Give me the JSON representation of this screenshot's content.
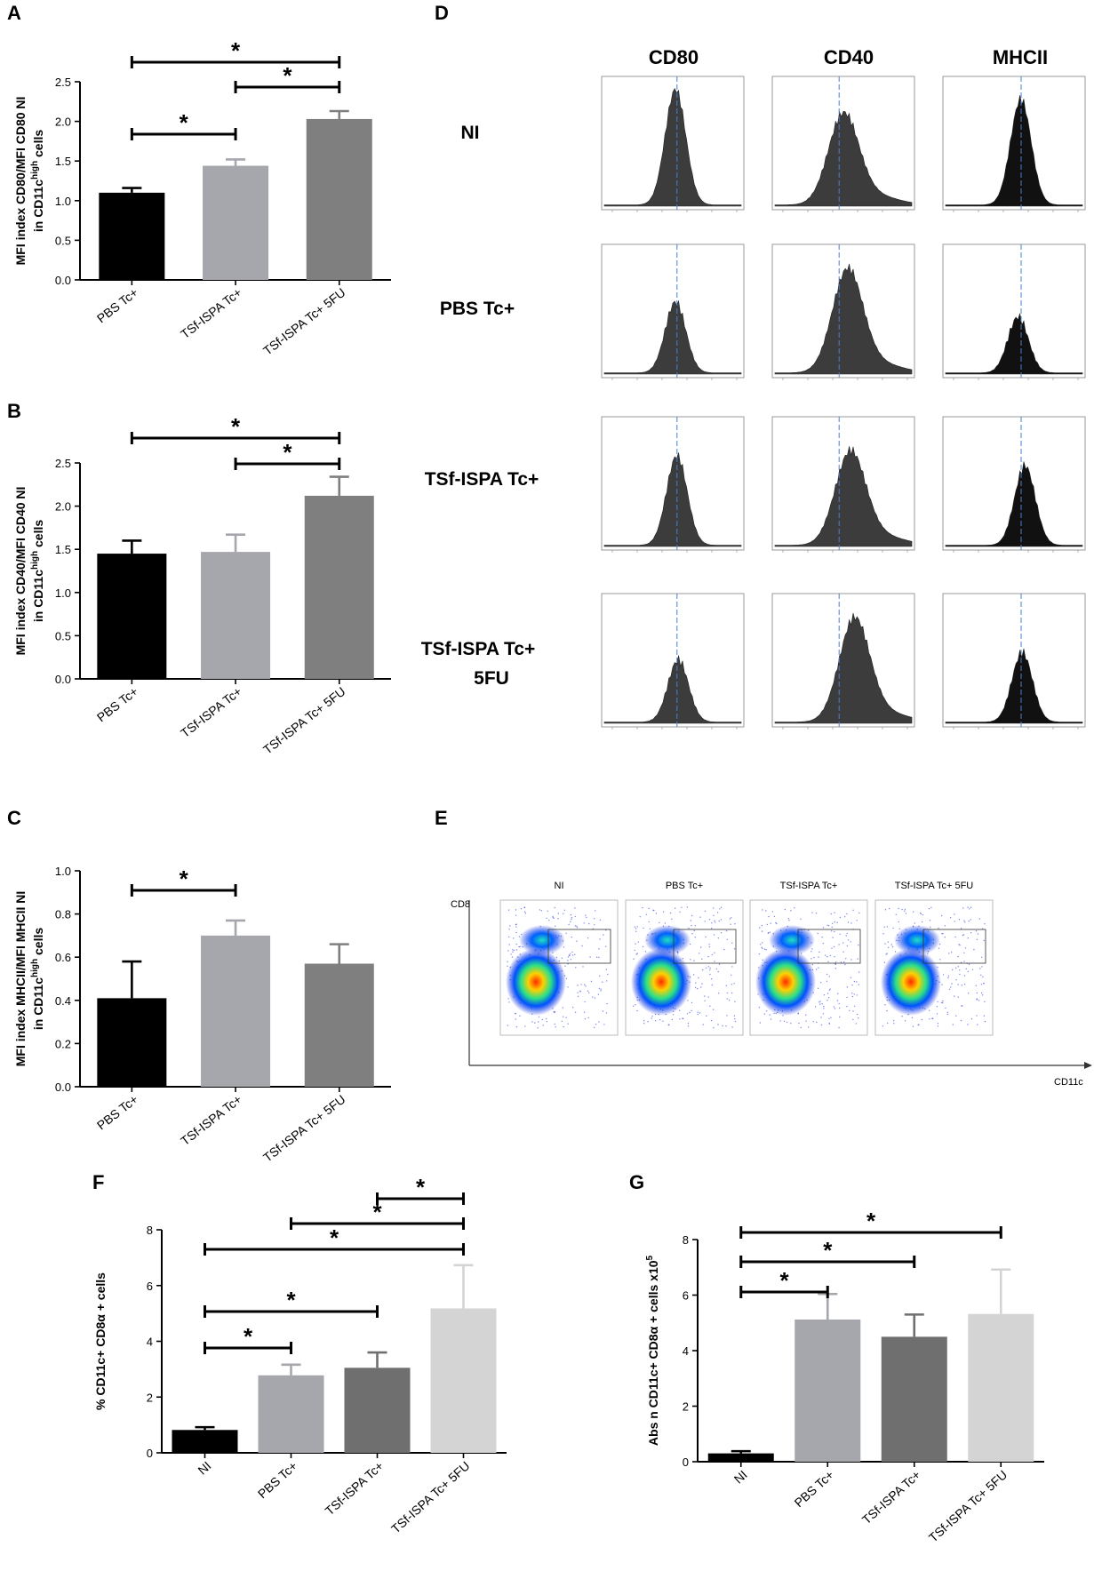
{
  "figure": {
    "panel_letters": [
      "A",
      "B",
      "C",
      "D",
      "E",
      "F",
      "G"
    ]
  },
  "chart_data": [
    {
      "panel": "A",
      "type": "bar",
      "categories": [
        "PBS Tc+",
        "TSf-ISPA Tc+",
        "TSf-ISPA Tc+ 5FU"
      ],
      "values": [
        1.1,
        1.44,
        2.03
      ],
      "errors": [
        0.06,
        0.08,
        0.1
      ],
      "colors": [
        "#000000",
        "#a6a6ad",
        "#7f7f7f"
      ],
      "ylabel_line1": "MFI index CD80/MFI CD80 NI",
      "ylabel_line2": "in CD11c",
      "ylabel_sup": "high",
      "ylabel_tail": " cells",
      "ylim": [
        0,
        2.5
      ],
      "yticks": [
        "0.0",
        "0.5",
        "1.0",
        "1.5",
        "2.0",
        "2.5"
      ],
      "significance": [
        {
          "from": 0,
          "to": 2,
          "label": "*"
        },
        {
          "from": 1,
          "to": 2,
          "label": "*"
        },
        {
          "from": 0,
          "to": 1,
          "label": "*"
        }
      ]
    },
    {
      "panel": "B",
      "type": "bar",
      "categories": [
        "PBS Tc+",
        "TSf-ISPA Tc+",
        "TSf-ISPA Tc+ 5FU"
      ],
      "values": [
        1.45,
        1.47,
        2.12
      ],
      "errors": [
        0.15,
        0.2,
        0.22
      ],
      "colors": [
        "#000000",
        "#a6a6ad",
        "#7f7f7f"
      ],
      "ylabel_line1": "MFI index CD40/MFI CD40 NI",
      "ylabel_line2": "in CD11c",
      "ylabel_sup": "high",
      "ylabel_tail": " cells",
      "ylim": [
        0,
        2.5
      ],
      "yticks": [
        "0.0",
        "0.5",
        "1.0",
        "1.5",
        "2.0",
        "2.5"
      ],
      "significance": [
        {
          "from": 0,
          "to": 2,
          "label": "*"
        },
        {
          "from": 1,
          "to": 2,
          "label": "*"
        }
      ]
    },
    {
      "panel": "C",
      "type": "bar",
      "categories": [
        "PBS Tc+",
        "TSf-ISPA Tc+",
        "TSf-ISPA Tc+ 5FU"
      ],
      "values": [
        0.41,
        0.7,
        0.57
      ],
      "errors": [
        0.17,
        0.07,
        0.09
      ],
      "colors": [
        "#000000",
        "#a6a6ad",
        "#7f7f7f"
      ],
      "ylabel_line1": "MFI index MHCII/MFI MHCII NI",
      "ylabel_line2": "in CD11c",
      "ylabel_sup": "high",
      "ylabel_tail": " cells",
      "ylim": [
        0,
        1.0
      ],
      "yticks": [
        "0.0",
        "0.2",
        "0.4",
        "0.6",
        "0.8",
        "1.0"
      ],
      "significance": [
        {
          "from": 0,
          "to": 1,
          "label": "*"
        }
      ]
    },
    {
      "panel": "F",
      "type": "bar",
      "categories": [
        "NI",
        "PBS Tc+",
        "TSf-ISPA Tc+",
        "TSf-ISPA Tc+ 5FU"
      ],
      "values": [
        0.82,
        2.78,
        3.05,
        5.18
      ],
      "errors": [
        0.1,
        0.38,
        0.55,
        1.55
      ],
      "colors": [
        "#000000",
        "#a6a6ad",
        "#6f6f6f",
        "#d4d4d4"
      ],
      "ylabel": "% CD11c+ CD8α + cells",
      "ylim": [
        0,
        8
      ],
      "yticks": [
        "0",
        "2",
        "4",
        "6",
        "8"
      ],
      "significance": [
        {
          "from": 2,
          "to": 3,
          "label": "*"
        },
        {
          "from": 1,
          "to": 3,
          "label": "*"
        },
        {
          "from": 0,
          "to": 3,
          "label": "*"
        },
        {
          "from": 0,
          "to": 2,
          "label": "*"
        },
        {
          "from": 0,
          "to": 1,
          "label": "*"
        }
      ]
    },
    {
      "panel": "G",
      "type": "bar",
      "categories": [
        "NI",
        "PBS Tc+",
        "TSf-ISPA Tc+",
        "TSf-ISPA Tc+ 5FU"
      ],
      "values": [
        0.3,
        5.12,
        4.5,
        5.32
      ],
      "errors": [
        0.08,
        0.92,
        0.8,
        1.6
      ],
      "colors": [
        "#000000",
        "#a6a6ad",
        "#6f6f6f",
        "#d4d4d4"
      ],
      "ylabel": "Abs n CD11c+ CD8α + cells x10",
      "ylabel_sup": "5",
      "ylim": [
        0,
        8
      ],
      "yticks": [
        "0",
        "2",
        "4",
        "6",
        "8"
      ],
      "significance": [
        {
          "from": 0,
          "to": 3,
          "label": "*"
        },
        {
          "from": 0,
          "to": 2,
          "label": "*"
        },
        {
          "from": 0,
          "to": 1,
          "label": "*"
        }
      ]
    }
  ],
  "panel_D": {
    "columns": [
      "CD80",
      "CD40",
      "MHCII"
    ],
    "rows": [
      "NI",
      "PBS Tc+",
      "TSf-ISPA Tc+",
      "TSf-ISPA Tc+ 5FU"
    ],
    "row_label_line2_last": "5FU",
    "fill_colors": [
      "#3c3c3c",
      "#3c3c3c",
      "#111111"
    ]
  },
  "panel_E": {
    "columns": [
      "NI",
      "PBS Tc+",
      "TSf-ISPA Tc+",
      "TSf-ISPA Tc+ 5FU"
    ],
    "y_axis": "CD8",
    "x_axis": "CD11c"
  }
}
